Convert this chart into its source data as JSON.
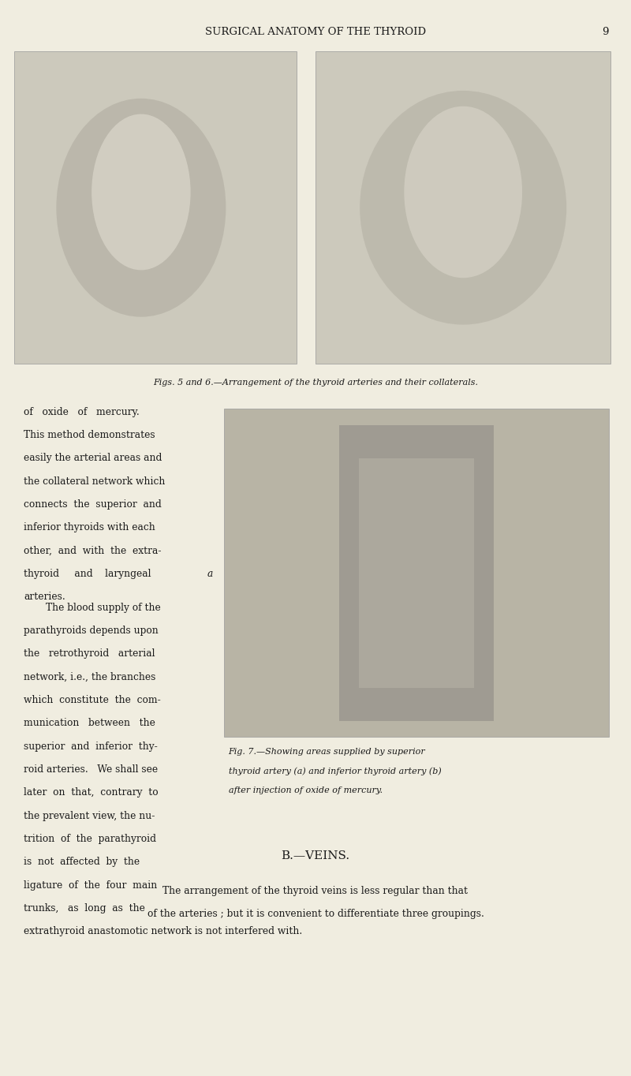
{
  "bg_color": "#f0ede0",
  "page_width": 8.0,
  "page_height": 13.64,
  "dpi": 100,
  "header_text": "SURGICAL ANATOMY OF THE THYROID",
  "header_page_num": "9",
  "fig56_caption": "Figs. 5 and 6.—Arrangement of the thyroid arteries and their collaterals.",
  "fig7_caption_line1": "Fig. 7.—Showing areas supplied by superior",
  "fig7_caption_line2": "thyroid artery (a) and inferior thyroid artery (b)",
  "fig7_caption_line3": "after injection of oxide of mercury.",
  "left_col_text": [
    "of   oxide   of   mercury.",
    "This method demonstrates",
    "easily the arterial areas and",
    "the collateral network which",
    "connects  the  superior  and",
    "inferior thyroids with each",
    "other,  and  with  the  extra-",
    "thyroid     and    laryngeal",
    "arteries."
  ],
  "left_col_text2": [
    "The blood supply of the",
    "parathyroids depends upon",
    "the   retrothyroid   arterial",
    "network, i.e., the branches",
    "which  constitute  the  com-",
    "munication   between   the",
    "superior  and  inferior  thy-",
    "roid arteries.   We shall see",
    "later  on  that,  contrary  to",
    "the prevalent view, the nu-",
    "trition  of  the  parathyroid",
    "is  not  affected  by  the",
    "ligature  of  the  four  main",
    "trunks,   as  long  as  the",
    "extrathyroid anastomotic network is not interfered with."
  ],
  "section_b_veins": "B.—VEINS.",
  "veins_text1": "The arrangement of the thyroid veins is less regular than that",
  "veins_text2": "of the arteries ; but it is convenient to differentiate three groupings.",
  "text_color": "#1a1a1a",
  "header_color": "#1a1a1a",
  "font_size_header": 9.5,
  "font_size_caption": 8.0,
  "font_size_body": 8.8,
  "font_size_section": 11.0,
  "img_bg_left": "#ccc9bc",
  "img_bg_right": "#ccc9bc",
  "img_bg_fig7": "#b8b4a5"
}
